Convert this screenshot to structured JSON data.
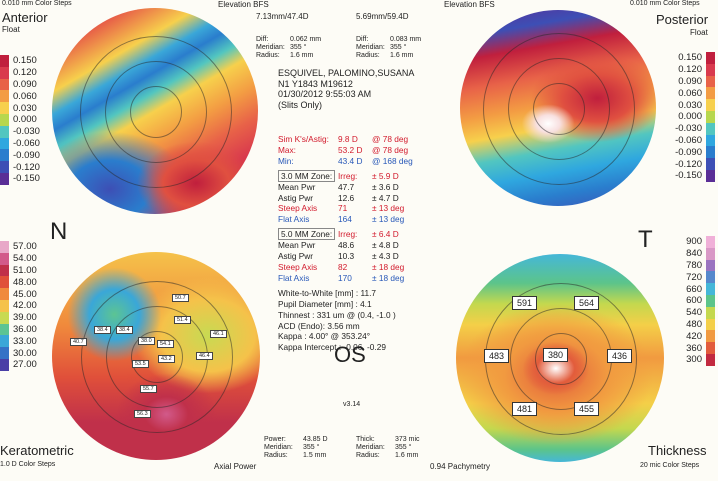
{
  "anterior": {
    "color_steps": "0.010 mm Color Steps",
    "title": "Anterior",
    "subtitle": "Float",
    "elevation": "Elevation BFS",
    "bfs": "7.13mm/47.4D",
    "diff_label": "Diff:",
    "diff_val": "0.062 mm",
    "meridian_label": "Meridian:",
    "meridian_val": "355 °",
    "radius_label": "Radius:",
    "radius_val": "1.6 mm",
    "scale": [
      {
        "v": "0.150",
        "c": "#c01f3d"
      },
      {
        "v": "0.120",
        "c": "#d93a4d"
      },
      {
        "v": "0.090",
        "c": "#e86248"
      },
      {
        "v": "0.060",
        "c": "#f39c43"
      },
      {
        "v": "0.030",
        "c": "#f7d04c"
      },
      {
        "v": "0.000",
        "c": "#b7d74d"
      },
      {
        "v": "-0.030",
        "c": "#52c6c0"
      },
      {
        "v": "-0.060",
        "c": "#2fa7df"
      },
      {
        "v": "-0.090",
        "c": "#2a7dcd"
      },
      {
        "v": "-0.120",
        "c": "#3d4fb5"
      },
      {
        "v": "-0.150",
        "c": "#5a2e96"
      }
    ]
  },
  "posterior": {
    "color_steps": "0.010 mm Color Steps",
    "title": "Posterior",
    "subtitle": "Float",
    "elevation": "Elevation BFS",
    "bfs": "5.69mm/59.4D",
    "diff_label": "Diff:",
    "diff_val": "0.083 mm",
    "meridian_label": "Meridian:",
    "meridian_val": "355 °",
    "radius_label": "Radius:",
    "radius_val": "1.6 mm",
    "scale": [
      {
        "v": "0.150",
        "c": "#c01f3d"
      },
      {
        "v": "0.120",
        "c": "#d93a4d"
      },
      {
        "v": "0.090",
        "c": "#e86248"
      },
      {
        "v": "0.060",
        "c": "#f39c43"
      },
      {
        "v": "0.030",
        "c": "#f7d04c"
      },
      {
        "v": "0.000",
        "c": "#b7d74d"
      },
      {
        "v": "-0.030",
        "c": "#52c6c0"
      },
      {
        "v": "-0.060",
        "c": "#2fa7df"
      },
      {
        "v": "-0.090",
        "c": "#2a7dcd"
      },
      {
        "v": "-0.120",
        "c": "#3d4fb5"
      },
      {
        "v": "-0.150",
        "c": "#5a2e96"
      }
    ]
  },
  "keratometric": {
    "title": "Keratometric",
    "color_steps": "1.0 D Color Steps",
    "axial": "Axial Power",
    "power_label": "Power:",
    "power_val": "43.85 D",
    "meridian_label": "Meridian:",
    "meridian_val": "355 °",
    "radius_label": "Radius:",
    "radius_val": "1.5 mm",
    "scale": [
      {
        "v": "57.00",
        "c": "#e8a8c8"
      },
      {
        "v": "54.00",
        "c": "#d25a8a"
      },
      {
        "v": "51.00",
        "c": "#c0304a"
      },
      {
        "v": "48.00",
        "c": "#e0503a"
      },
      {
        "v": "45.00",
        "c": "#f08a3c"
      },
      {
        "v": "42.00",
        "c": "#f5c24a"
      },
      {
        "v": "39.00",
        "c": "#c8da52"
      },
      {
        "v": "36.00",
        "c": "#5cc493"
      },
      {
        "v": "33.00",
        "c": "#3aa7d8"
      },
      {
        "v": "30.00",
        "c": "#3572c6"
      },
      {
        "v": "27.00",
        "c": "#4a3fa6"
      }
    ],
    "values": [
      "50.7",
      "51.4",
      "46.1",
      "40.7",
      "38.4",
      "38.4",
      "38.0",
      "54.1",
      "43.2",
      "46.4",
      "53.5",
      "55.7",
      "56.3"
    ]
  },
  "thickness": {
    "title": "Thickness",
    "color_steps": "20 mic Color Steps",
    "pachy": "0.94 Pachymetry",
    "thick_label": "Thick:",
    "thick_val": "373 mic",
    "meridian_label": "Meridian:",
    "meridian_val": "355 °",
    "radius_label": "Radius:",
    "radius_val": "1.6 mm",
    "scale": [
      {
        "v": "900",
        "c": "#f0b0d8"
      },
      {
        "v": "840",
        "c": "#d998c6"
      },
      {
        "v": "780",
        "c": "#9a74c0"
      },
      {
        "v": "720",
        "c": "#5688cc"
      },
      {
        "v": "660",
        "c": "#45b7d8"
      },
      {
        "v": "600",
        "c": "#5cc48a"
      },
      {
        "v": "540",
        "c": "#c4d84e"
      },
      {
        "v": "480",
        "c": "#f4cf48"
      },
      {
        "v": "420",
        "c": "#f19a40"
      },
      {
        "v": "360",
        "c": "#e25c3c"
      },
      {
        "v": "300",
        "c": "#c22a40"
      }
    ],
    "values": [
      "591",
      "564",
      "483",
      "380",
      "436",
      "481",
      "455"
    ]
  },
  "patient": {
    "name": "ESQUIVEL, PALOMINO,SUSANA",
    "id": "N1 Y1843 M19612",
    "datetime": "01/30/2012 9:55:03 AM",
    "mode": "(Slits Only)"
  },
  "sim_k": {
    "astig_label": "Sim K's/Astig:",
    "astig_val": "9.8 D",
    "astig_axis": "@ 78 deg",
    "max_label": "Max:",
    "max_val": "53.2 D",
    "max_axis": "@ 78 deg",
    "min_label": "Min:",
    "min_val": "43.4 D",
    "min_axis": "@ 168 deg"
  },
  "zone3": {
    "label": "3.0 MM Zone:",
    "irreg": "Irreg:",
    "irreg_val": "± 5.9 D",
    "mean_label": "Mean Pwr",
    "mean_val": "47.7",
    "mean_sd": "± 3.6 D",
    "astig_label": "Astig Pwr",
    "astig_val": "12.6",
    "astig_sd": "± 4.7 D",
    "steep_label": "Steep Axis",
    "steep_val": "71",
    "steep_sd": "± 13 deg",
    "flat_label": "Flat Axis",
    "flat_val": "164",
    "flat_sd": "± 13 deg"
  },
  "zone5": {
    "label": "5.0 MM Zone:",
    "irreg": "Irreg:",
    "irreg_val": "± 6.4 D",
    "mean_label": "Mean Pwr",
    "mean_val": "48.6",
    "mean_sd": "± 4.8 D",
    "astig_label": "Astig Pwr",
    "astig_val": "10.3",
    "astig_sd": "± 4.3 D",
    "steep_label": "Steep Axis",
    "steep_val": "82",
    "steep_sd": "± 18 deg",
    "flat_label": "Flat Axis",
    "flat_val": "170",
    "flat_sd": "± 18 deg"
  },
  "misc": {
    "wtw": "White-to-White [mm] : 11.7",
    "pupil": "Pupil Diameter [mm] : 4.1",
    "thinnest": "Thinnest : 331 um @ (0.4, -1.0 )",
    "acd": "ACD (Endo): 3.56 mm",
    "kappa": "Kappa : 4.00° @ 353.24°",
    "kappa_int": "Kappa Intercept : -0.06, -0.29"
  },
  "labels": {
    "n": "N",
    "t": "T",
    "os": "OS",
    "version": "v3.14"
  },
  "colors": {
    "red": "#d21a2c",
    "blue": "#2858b8"
  }
}
